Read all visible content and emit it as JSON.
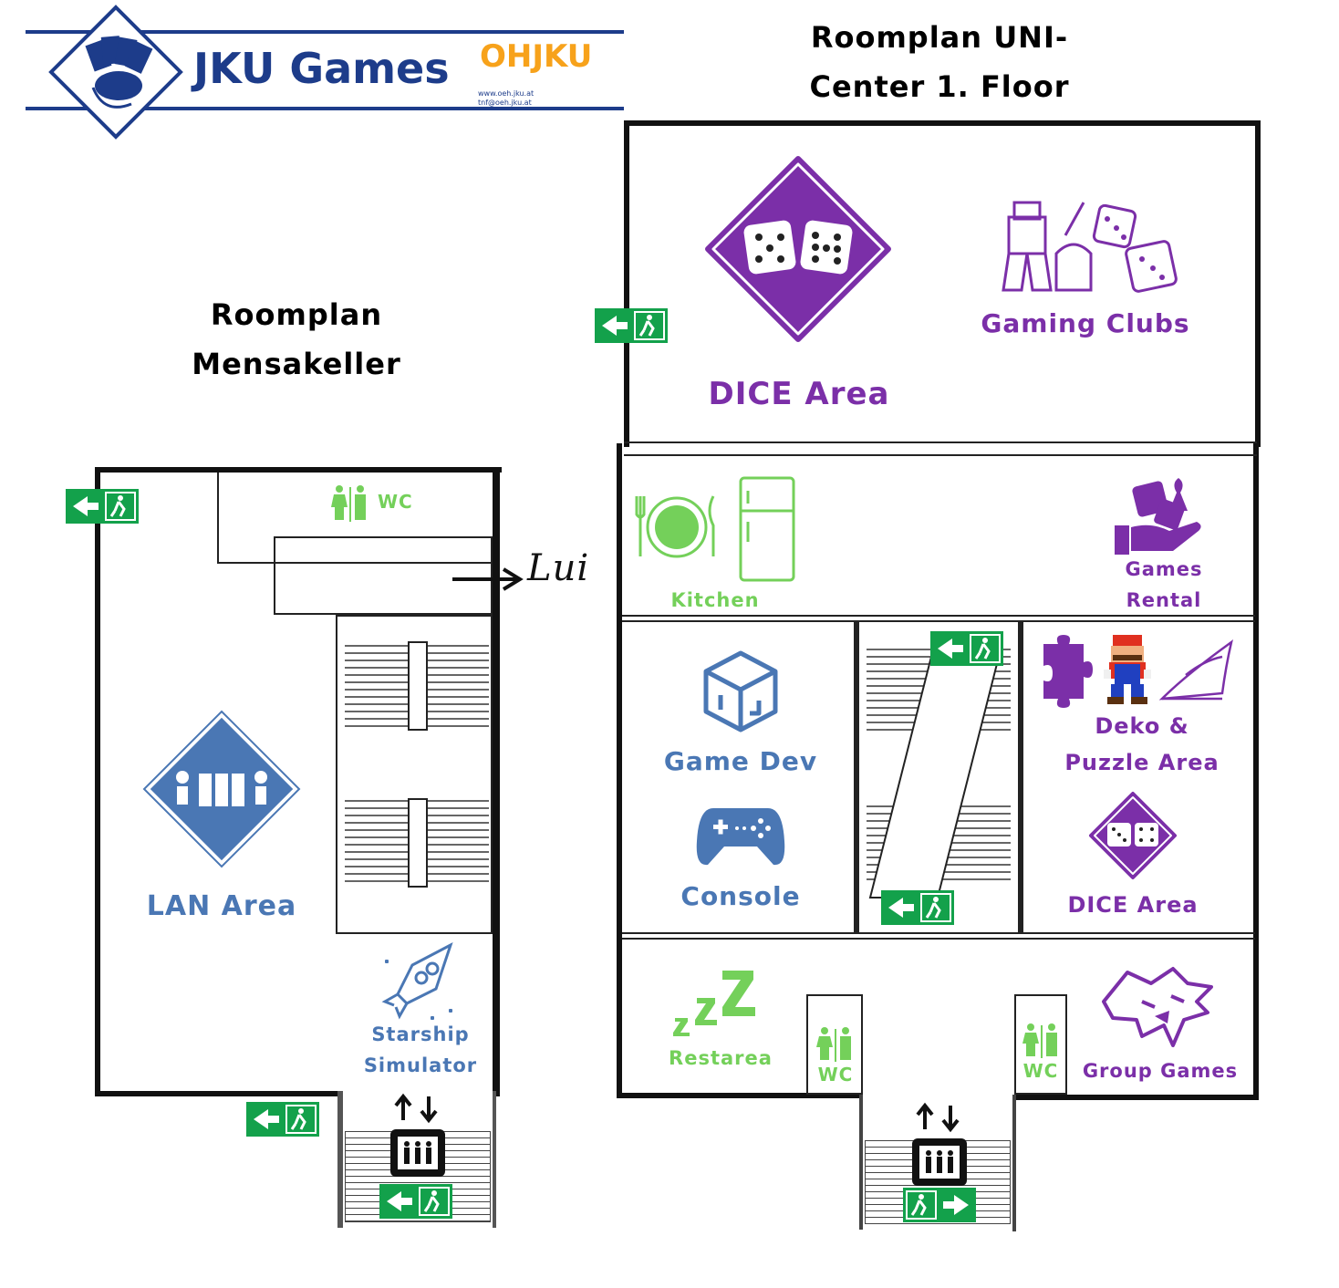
{
  "header": {
    "logo_text": "JKU Games",
    "oh_logo_text": "OHJKU",
    "oh_contact_line1": "www.oeh.jku.at",
    "oh_contact_line2": "tnf@oeh.jku.at",
    "right_title_line1": "Roomplan UNI-",
    "right_title_line2": "Center 1. Floor",
    "left_title_line1": "Roomplan",
    "left_title_line2": "Mensakeller"
  },
  "mensakeller": {
    "wc_label": "WC",
    "lui_label": "Lui",
    "lan_area_label": "LAN Area",
    "starship_line1": "Starship",
    "starship_line2": "Simulator"
  },
  "unicenter": {
    "dice_area_label": "DICE Area",
    "gaming_clubs_label": "Gaming Clubs",
    "kitchen_label": "Kitchen",
    "games_rental_line1": "Games",
    "games_rental_line2": "Rental",
    "game_dev_label": "Game Dev",
    "console_label": "Console",
    "deko_line1": "Deko &",
    "deko_line2": "Puzzle Area",
    "dice_area_small_label": "DICE Area",
    "restarea_label": "Restarea",
    "wc_left_label": "WC",
    "wc_right_label": "WC",
    "group_games_label": "Group Games"
  },
  "colors": {
    "purple": "#7b2fa8",
    "blue": "#4a77b4",
    "green": "#74d05a",
    "exit_green": "#13a14b",
    "navy": "#1d3c8a"
  },
  "icons": [
    "playing-cards-mouse-icon",
    "dice-icon",
    "miniature-figure-icon",
    "plate-cutlery-icon",
    "fridge-icon",
    "dice-hand-icon",
    "cube-logo-icon",
    "gamepad-icon",
    "puzzle-piece-icon",
    "mario-pixel-icon",
    "iron-icon",
    "wolf-icon",
    "restroom-icon",
    "elevator-icon",
    "emergency-exit-icon",
    "rocket-icon",
    "lan-computers-icon",
    "sleep-zzz-icon"
  ]
}
